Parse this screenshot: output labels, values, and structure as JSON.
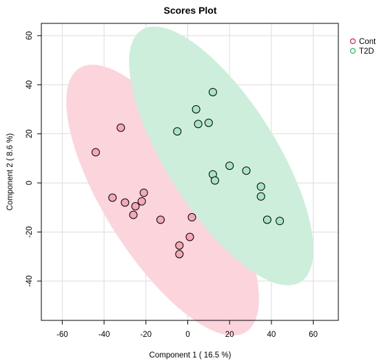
{
  "chart_data": {
    "type": "scatter",
    "title": "Scores Plot",
    "xlabel": "Component 1 ( 16.5 %)",
    "ylabel": "Component 2 ( 8.6 %)",
    "xlim": [
      -70,
      72
    ],
    "ylim": [
      -56,
      65
    ],
    "xticks": [
      -60,
      -40,
      -20,
      0,
      20,
      40,
      60
    ],
    "yticks": [
      -40,
      -20,
      0,
      20,
      40,
      60
    ],
    "grid": true,
    "legend_position": "top-right",
    "series": [
      {
        "name": "Cont",
        "color": "#e8174a",
        "fill": "#f4a9b6",
        "ellipse_fill": "#fcd4db",
        "x": [
          -44,
          -32,
          -36,
          -30,
          -25,
          -22,
          -21,
          -26,
          -13,
          2,
          1,
          -4,
          -4
        ],
        "y": [
          12.5,
          22.5,
          -6,
          -8,
          -9.5,
          -7.5,
          -4,
          -13,
          -15,
          -14,
          -22,
          -25.5,
          -29
        ],
        "ellipse": {
          "center": [
            -12,
            -7
          ],
          "major": 67,
          "minor": 26,
          "angle": -52
        }
      },
      {
        "name": "T2D",
        "color": "#1fbf62",
        "fill": "#a7e6c1",
        "ellipse_fill": "#cdeedb",
        "x": [
          12,
          4,
          -5,
          5,
          10,
          12,
          13,
          20,
          28,
          35,
          35,
          38,
          44
        ],
        "y": [
          37,
          30,
          21,
          24,
          24.5,
          3.5,
          1,
          7,
          5,
          -1.5,
          -5.5,
          -15,
          -15.5
        ],
        "ellipse": {
          "center": [
            16,
            11
          ],
          "major": 64,
          "minor": 25,
          "angle": -52
        }
      }
    ]
  }
}
